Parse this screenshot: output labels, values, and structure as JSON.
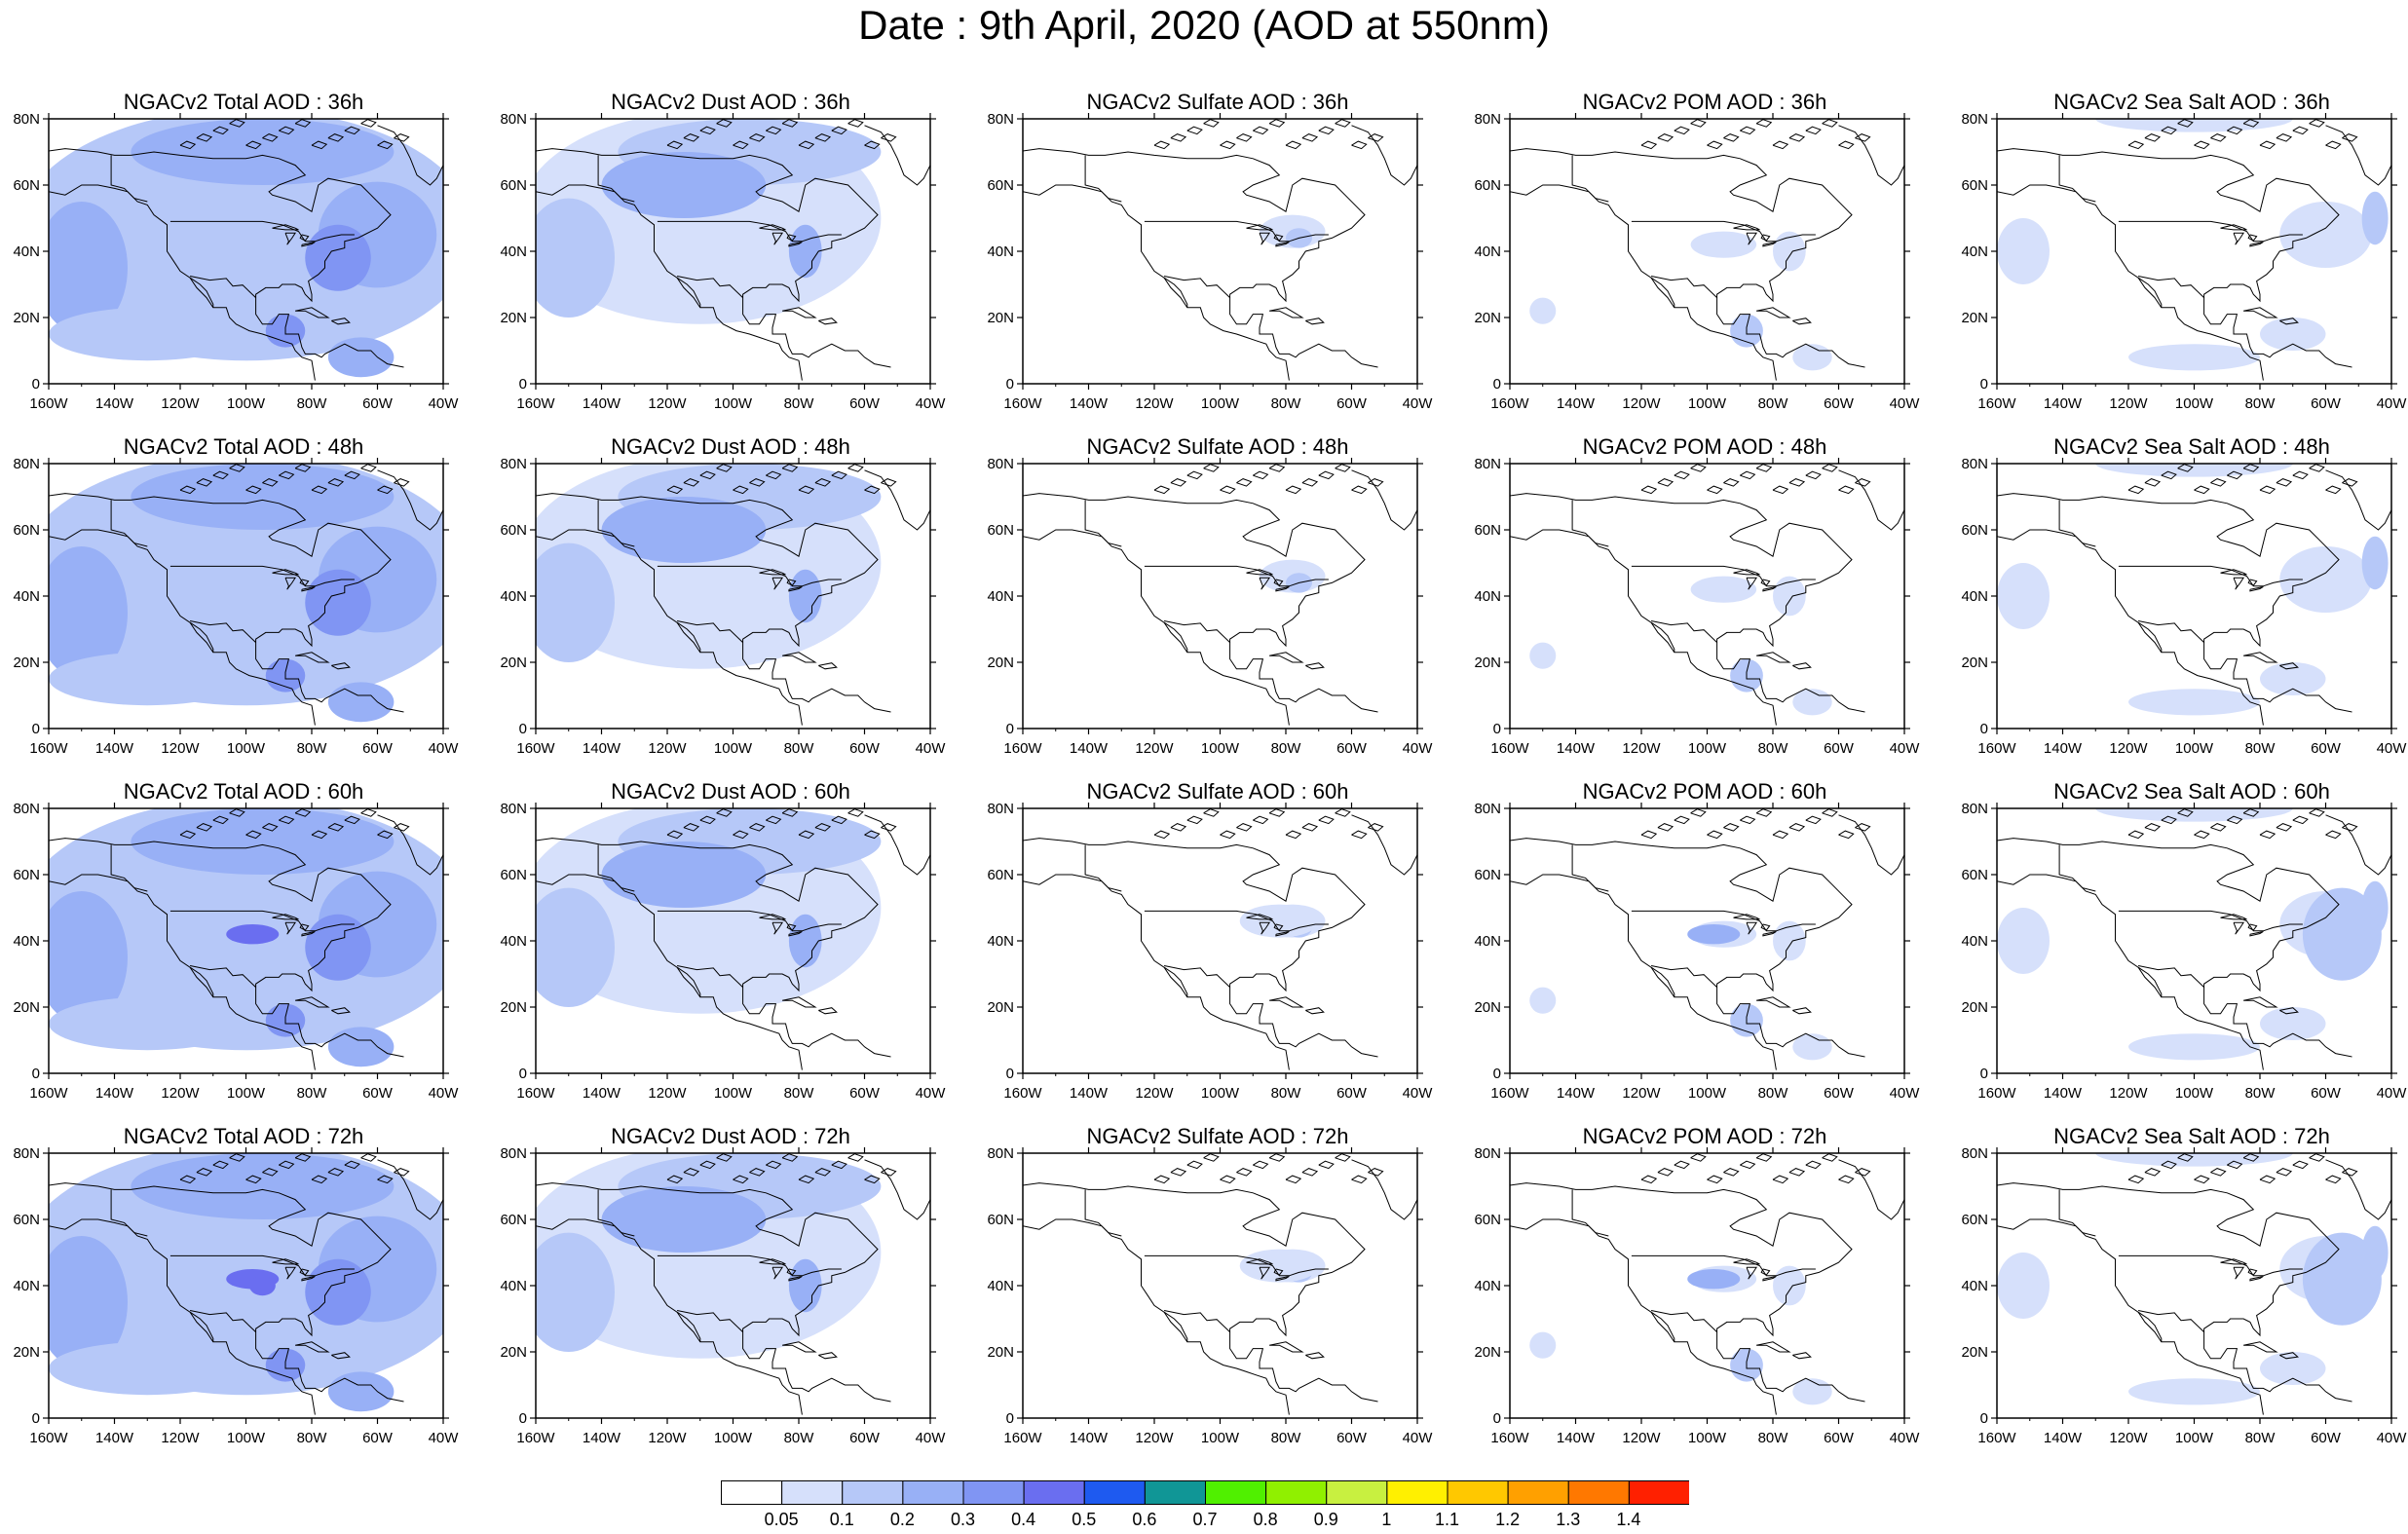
{
  "title": "Date : 9th April, 2020 (AOD at 550nm)",
  "map": {
    "lat_labels": [
      "80N",
      "60N",
      "40N",
      "20N",
      "0"
    ],
    "lon_labels": [
      "160W",
      "140W",
      "120W",
      "100W",
      "80W",
      "60W",
      "40W"
    ],
    "lat_range": [
      0,
      80
    ],
    "lon_range": [
      -160,
      -40
    ]
  },
  "panels": [
    [
      {
        "title": "NGACv2 Total AOD : 36h",
        "species": "total",
        "hour": 36
      },
      {
        "title": "NGACv2 Dust AOD : 36h",
        "species": "dust",
        "hour": 36
      },
      {
        "title": "NGACv2 Sulfate AOD : 36h",
        "species": "sulfate",
        "hour": 36
      },
      {
        "title": "NGACv2 POM AOD : 36h",
        "species": "pom",
        "hour": 36
      },
      {
        "title": "NGACv2 Sea Salt AOD : 36h",
        "species": "seasalt",
        "hour": 36
      }
    ],
    [
      {
        "title": "NGACv2 Total AOD : 48h",
        "species": "total",
        "hour": 48
      },
      {
        "title": "NGACv2 Dust AOD : 48h",
        "species": "dust",
        "hour": 48
      },
      {
        "title": "NGACv2 Sulfate AOD : 48h",
        "species": "sulfate",
        "hour": 48
      },
      {
        "title": "NGACv2 POM AOD : 48h",
        "species": "pom",
        "hour": 48
      },
      {
        "title": "NGACv2 Sea Salt AOD : 48h",
        "species": "seasalt",
        "hour": 48
      }
    ],
    [
      {
        "title": "NGACv2 Total AOD : 60h",
        "species": "total",
        "hour": 60
      },
      {
        "title": "NGACv2 Dust AOD : 60h",
        "species": "dust",
        "hour": 60
      },
      {
        "title": "NGACv2 Sulfate AOD : 60h",
        "species": "sulfate",
        "hour": 60
      },
      {
        "title": "NGACv2 POM AOD : 60h",
        "species": "pom",
        "hour": 60
      },
      {
        "title": "NGACv2 Sea Salt AOD : 60h",
        "species": "seasalt",
        "hour": 60
      }
    ],
    [
      {
        "title": "NGACv2 Total AOD : 72h",
        "species": "total",
        "hour": 72
      },
      {
        "title": "NGACv2 Dust AOD : 72h",
        "species": "dust",
        "hour": 72
      },
      {
        "title": "NGACv2 Sulfate AOD : 72h",
        "species": "sulfate",
        "hour": 72
      },
      {
        "title": "NGACv2 POM AOD : 72h",
        "species": "pom",
        "hour": 72
      },
      {
        "title": "NGACv2 Sea Salt  AOD : 72h",
        "species": "seasalt",
        "hour": 72
      }
    ]
  ],
  "colorbar": {
    "colors": [
      "#ffffff",
      "#d6e0fb",
      "#b6c8f8",
      "#98b0f6",
      "#8095f3",
      "#6a6ef0",
      "#1e5af0",
      "#109696",
      "#50f000",
      "#90f000",
      "#c8f040",
      "#fff000",
      "#ffc800",
      "#ffa000",
      "#ff7800",
      "#ff2000"
    ],
    "labels": [
      "0.05",
      "0.1",
      "0.2",
      "0.3",
      "0.4",
      "0.5",
      "0.6",
      "0.7",
      "0.8",
      "0.9",
      "1",
      "1.1",
      "1.2",
      "1.3",
      "1.4"
    ]
  }
}
